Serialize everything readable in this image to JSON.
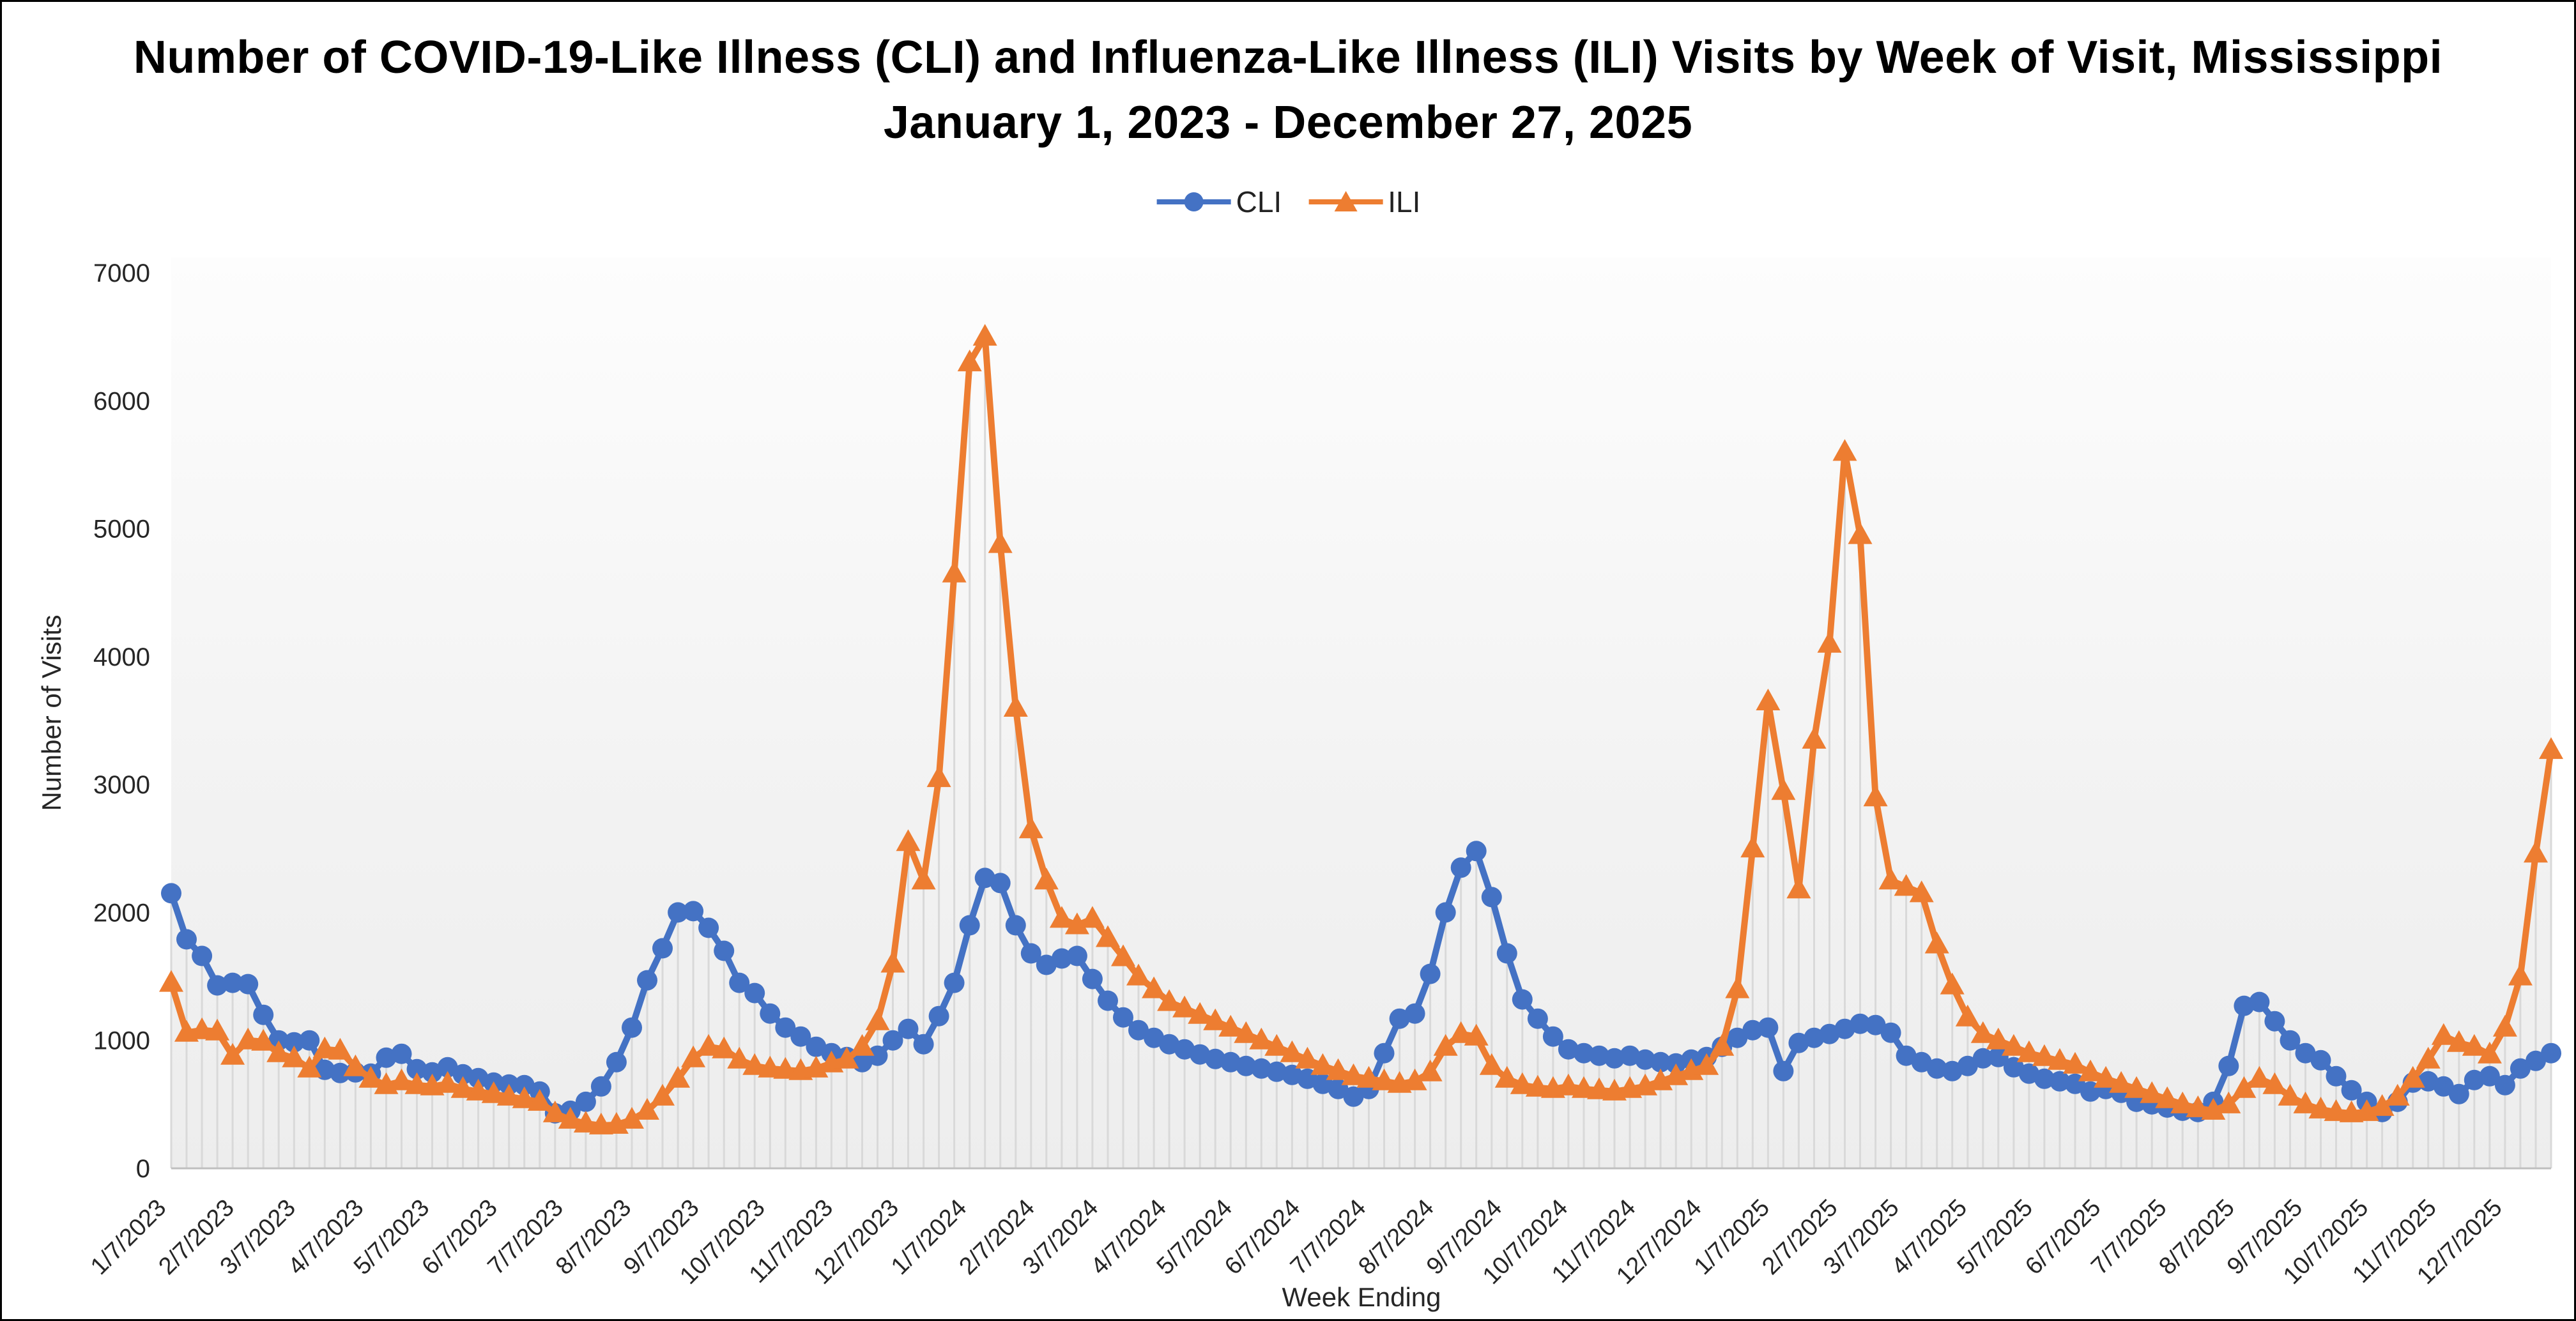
{
  "title": "Number of COVID-19-Like Illness (CLI) and Influenza-Like Illness (ILI) Visits by Week of Visit, Mississippi January 1, 2023 - December 27, 2025",
  "legend": {
    "items": [
      {
        "label": "CLI",
        "color": "#4472C4",
        "marker": "circle-marker-icon"
      },
      {
        "label": "ILI",
        "color": "#ED7D31",
        "marker": "triangle-marker-icon"
      }
    ]
  },
  "colors": {
    "cli": "#4472C4",
    "ili": "#ED7D31",
    "drop_line": "#D9D9D9",
    "axis_line": "#BFBFBF",
    "tick_text": "#262626",
    "plot_bg_top": "#FDFDFD",
    "plot_bg_bottom": "#EDEDED"
  },
  "chart_data": {
    "type": "line",
    "title": "Number of COVID-19-Like Illness (CLI) and Influenza-Like Illness (ILI) Visits by Week of Visit, Mississippi January 1, 2023 - December 27, 2025",
    "xlabel": "Week Ending",
    "ylabel": "Number of Visits",
    "ylim": [
      0,
      7000
    ],
    "yticks": [
      0,
      1000,
      2000,
      3000,
      4000,
      5000,
      6000,
      7000
    ],
    "grid": "none",
    "legend_position": "top-center",
    "weeks": 156,
    "first_week_ending": "1/7/2023",
    "last_week_ending": "12/27/2025",
    "x_tick_labels": [
      "1/7/2023",
      "2/7/2023",
      "3/7/2023",
      "4/7/2023",
      "5/7/2023",
      "6/7/2023",
      "7/7/2023",
      "8/7/2023",
      "9/7/2023",
      "10/7/2023",
      "11/7/2023",
      "12/7/2023",
      "1/7/2024",
      "2/7/2024",
      "3/7/2024",
      "4/7/2024",
      "5/7/2024",
      "6/7/2024",
      "7/7/2024",
      "8/7/2024",
      "9/7/2024",
      "10/7/2024",
      "11/7/2024",
      "12/7/2024",
      "1/7/2025",
      "2/7/2025",
      "3/7/2025",
      "4/7/2025",
      "5/7/2025",
      "6/7/2025",
      "7/7/2025",
      "8/7/2025",
      "9/7/2025",
      "10/7/2025",
      "11/7/2025",
      "12/7/2025"
    ],
    "x_tick_week_index": [
      0,
      4.43,
      8.43,
      12.86,
      17.14,
      21.57,
      25.86,
      30.29,
      34.71,
      39.0,
      43.43,
      47.71,
      52.14,
      56.57,
      60.71,
      65.14,
      69.43,
      73.86,
      78.14,
      82.57,
      87.0,
      91.29,
      95.71,
      100.0,
      104.43,
      108.86,
      112.86,
      117.29,
      121.57,
      126.0,
      130.29,
      134.71,
      139.14,
      143.43,
      147.86,
      152.14
    ],
    "series": [
      {
        "name": "CLI",
        "color": "#4472C4",
        "marker": "circle",
        "values": [
          2150,
          1790,
          1660,
          1430,
          1450,
          1440,
          1200,
          1000,
          985,
          1000,
          770,
          745,
          750,
          740,
          865,
          895,
          775,
          750,
          790,
          735,
          705,
          670,
          655,
          650,
          600,
          430,
          450,
          520,
          640,
          830,
          1100,
          1470,
          1720,
          2000,
          2010,
          1880,
          1700,
          1450,
          1370,
          1210,
          1100,
          1030,
          950,
          900,
          870,
          830,
          880,
          1000,
          1090,
          970,
          1190,
          1450,
          1900,
          2270,
          2230,
          1900,
          1680,
          1590,
          1640,
          1660,
          1480,
          1310,
          1180,
          1080,
          1020,
          970,
          930,
          890,
          855,
          830,
          800,
          780,
          755,
          730,
          700,
          660,
          620,
          560,
          620,
          900,
          1170,
          1210,
          1520,
          2000,
          2350,
          2480,
          2120,
          1680,
          1320,
          1170,
          1030,
          930,
          900,
          880,
          860,
          880,
          850,
          830,
          820,
          850,
          870,
          950,
          1020,
          1080,
          1100,
          760,
          980,
          1020,
          1050,
          1090,
          1130,
          1120,
          1060,
          880,
          830,
          780,
          760,
          800,
          860,
          870,
          790,
          740,
          700,
          680,
          660,
          600,
          620,
          590,
          520,
          500,
          475,
          450,
          440,
          520,
          800,
          1270,
          1300,
          1150,
          1000,
          900,
          845,
          720,
          610,
          520,
          440,
          520,
          670,
          680,
          640,
          580,
          690,
          720,
          650,
          780,
          840,
          900
        ]
      },
      {
        "name": "ILI",
        "color": "#ED7D31",
        "marker": "triangle",
        "values": [
          1450,
          1060,
          1080,
          1070,
          880,
          1000,
          990,
          900,
          860,
          780,
          930,
          920,
          790,
          700,
          650,
          680,
          650,
          640,
          660,
          620,
          600,
          580,
          560,
          540,
          520,
          430,
          380,
          350,
          335,
          340,
          380,
          450,
          560,
          700,
          860,
          950,
          930,
          850,
          800,
          780,
          770,
          760,
          780,
          820,
          850,
          950,
          1150,
          1600,
          2550,
          2250,
          3050,
          4650,
          6300,
          6500,
          4880,
          3600,
          2650,
          2250,
          1950,
          1900,
          1950,
          1800,
          1650,
          1500,
          1400,
          1300,
          1250,
          1200,
          1150,
          1100,
          1050,
          1000,
          950,
          900,
          850,
          800,
          760,
          720,
          700,
          680,
          660,
          680,
          750,
          950,
          1050,
          1030,
          800,
          700,
          650,
          630,
          620,
          640,
          620,
          610,
          600,
          620,
          640,
          680,
          720,
          760,
          800,
          950,
          1400,
          2500,
          3650,
          2950,
          2180,
          3350,
          4100,
          5600,
          4950,
          2900,
          2250,
          2200,
          2150,
          1750,
          1430,
          1180,
          1050,
          1000,
          950,
          900,
          870,
          840,
          810,
          750,
          700,
          660,
          620,
          580,
          540,
          500,
          470,
          450,
          500,
          620,
          700,
          650,
          560,
          500,
          460,
          440,
          430,
          440,
          480,
          560,
          700,
          850,
          1035,
          980,
          950,
          890,
          1100,
          1500,
          2460,
          3270
        ]
      }
    ]
  }
}
